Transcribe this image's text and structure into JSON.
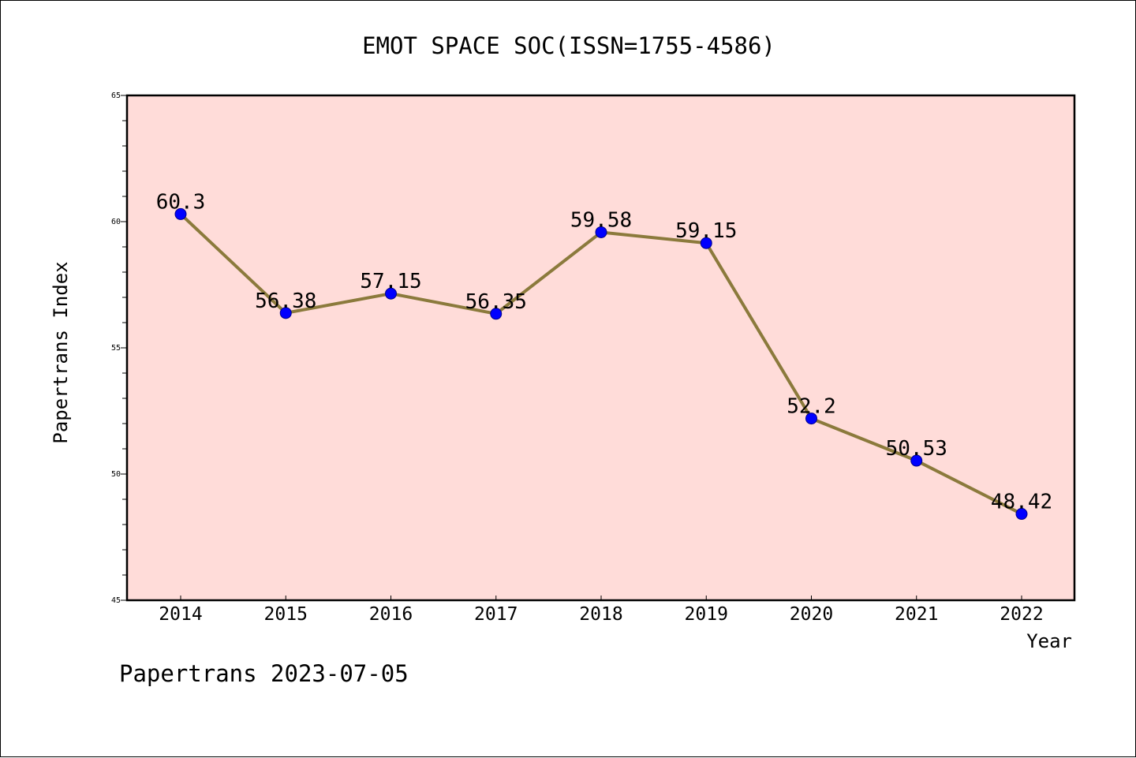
{
  "chart_data": {
    "type": "line",
    "title": "EMOT SPACE SOC(ISSN=1755-4586)",
    "xlabel": "Year",
    "ylabel": "Papertrans Index",
    "x": [
      "2014",
      "2015",
      "2016",
      "2017",
      "2018",
      "2019",
      "2020",
      "2021",
      "2022"
    ],
    "series": [
      {
        "values": [
          60.3,
          56.38,
          57.15,
          56.35,
          59.58,
          59.15,
          52.2,
          50.53,
          48.42
        ],
        "labels": [
          "60.3",
          "56.38",
          "57.15",
          "56.35",
          "59.58",
          "59.15",
          "52.2",
          "50.53",
          "48.42"
        ]
      }
    ],
    "ylim": [
      45,
      65
    ],
    "yticks": [
      "45",
      "50",
      "55",
      "60",
      "65"
    ],
    "grid": false,
    "legend": "none",
    "colors": {
      "line": "#8b7a3c",
      "marker": "#0000ff",
      "marker_edge": "#00008b",
      "plot_background": "#ffdcd9",
      "frame": "#000000"
    }
  },
  "footer": {
    "text": "Papertrans 2023-07-05"
  }
}
